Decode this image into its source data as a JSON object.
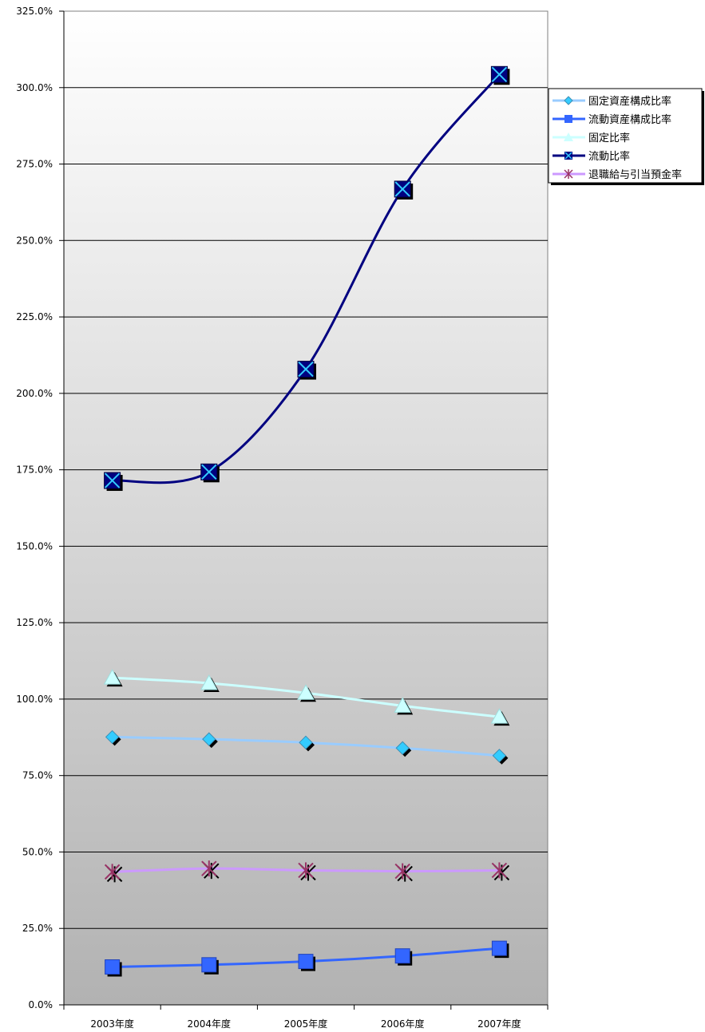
{
  "chart_data": {
    "type": "line",
    "categories": [
      "2003年度",
      "2004年度",
      "2005年度",
      "2006年度",
      "2007年度"
    ],
    "ylim": [
      0,
      325
    ],
    "ytick_values": [
      0,
      25,
      50,
      75,
      100,
      125,
      150,
      175,
      200,
      225,
      250,
      275,
      300,
      325
    ],
    "ytick_labels": [
      "0.0%",
      "25.0%",
      "50.0%",
      "75.0%",
      "100.0%",
      "125.0%",
      "150.0%",
      "175.0%",
      "200.0%",
      "225.0%",
      "250.0%",
      "275.0%",
      "300.0%",
      "325.0%"
    ],
    "grid": true,
    "smooth": true,
    "legend_position": "right",
    "background_gradient": [
      "#ffffff",
      "#b2b2b2"
    ],
    "series": [
      {
        "name": "固定資産構成比率",
        "values": [
          87.6,
          86.9,
          85.8,
          84.0,
          81.5
        ],
        "color": "#99ccff",
        "marker": "diamond",
        "marker_fill": "#33ccff"
      },
      {
        "name": "流動資産構成比率",
        "values": [
          12.4,
          13.1,
          14.2,
          16.0,
          18.5
        ],
        "color": "#3366ff",
        "marker": "square",
        "marker_fill": "#3366ff"
      },
      {
        "name": "固定比率",
        "values": [
          107.0,
          105.2,
          102.0,
          97.8,
          94.2
        ],
        "color": "#ccffff",
        "marker": "triangle",
        "marker_fill": "#ccffff"
      },
      {
        "name": "流動比率",
        "values": [
          171.5,
          174.3,
          207.9,
          266.8,
          304.3
        ],
        "color": "#000080",
        "marker": "x-square",
        "marker_fill": "#000080"
      },
      {
        "name": "退職給与引当預金率",
        "values": [
          43.5,
          44.6,
          44.0,
          43.7,
          44.0
        ],
        "color": "#cc99ff",
        "marker": "star",
        "marker_fill": "#993366"
      }
    ]
  }
}
